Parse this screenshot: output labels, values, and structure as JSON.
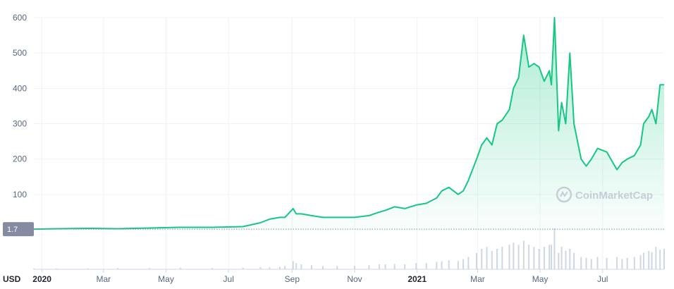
{
  "currency_label": "USD",
  "watermark": {
    "text": "CoinMarketCap",
    "icon": "coinmarketcap-logo-icon"
  },
  "baseline_badge": "1.7",
  "colors": {
    "line": "#16c784",
    "fill_top": "#16c784",
    "grid": "#eff2f5",
    "volume": "#cfd6e4",
    "badge": "#858ca2"
  },
  "chart_data": {
    "type": "area",
    "title": "",
    "xlabel": "",
    "ylabel": "",
    "ylim": [
      0,
      600
    ],
    "yticks": [
      100,
      200,
      300,
      400,
      500,
      600
    ],
    "xlim": [
      "2019-12-24",
      "2021-08-30"
    ],
    "xticks": [
      {
        "date": "2020-01-01",
        "label": "2020",
        "bold": true
      },
      {
        "date": "2020-03-01",
        "label": "Mar"
      },
      {
        "date": "2020-05-01",
        "label": "May"
      },
      {
        "date": "2020-07-01",
        "label": "Jul"
      },
      {
        "date": "2020-09-01",
        "label": "Sep"
      },
      {
        "date": "2020-11-01",
        "label": "Nov"
      },
      {
        "date": "2021-01-01",
        "label": "2021",
        "bold": true
      },
      {
        "date": "2021-03-01",
        "label": "Mar"
      },
      {
        "date": "2021-05-01",
        "label": "May"
      },
      {
        "date": "2021-07-01",
        "label": "Jul"
      }
    ],
    "series": [
      {
        "x": [
          "2019-12-24",
          "2020-01-15",
          "2020-02-15",
          "2020-03-15",
          "2020-04-15",
          "2020-05-15",
          "2020-06-15",
          "2020-07-15",
          "2020-08-01",
          "2020-08-10",
          "2020-08-20",
          "2020-08-25",
          "2020-09-02",
          "2020-09-05",
          "2020-09-10",
          "2020-09-20",
          "2020-10-01",
          "2020-10-15",
          "2020-11-01",
          "2020-11-15",
          "2020-11-25",
          "2020-12-01",
          "2020-12-10",
          "2020-12-20",
          "2020-12-31",
          "2021-01-10",
          "2021-01-20",
          "2021-01-25",
          "2021-02-01",
          "2021-02-10",
          "2021-02-15",
          "2021-02-20",
          "2021-02-28",
          "2021-03-05",
          "2021-03-10",
          "2021-03-15",
          "2021-03-20",
          "2021-03-25",
          "2021-04-01",
          "2021-04-05",
          "2021-04-10",
          "2021-04-15",
          "2021-04-20",
          "2021-04-25",
          "2021-04-30",
          "2021-05-05",
          "2021-05-10",
          "2021-05-12",
          "2021-05-15",
          "2021-05-19",
          "2021-05-22",
          "2021-05-26",
          "2021-05-30",
          "2021-06-03",
          "2021-06-10",
          "2021-06-15",
          "2021-06-20",
          "2021-06-26",
          "2021-07-05",
          "2021-07-15",
          "2021-07-20",
          "2021-07-25",
          "2021-08-01",
          "2021-08-07",
          "2021-08-10",
          "2021-08-15",
          "2021-08-18",
          "2021-08-22",
          "2021-08-26",
          "2021-08-30"
        ],
        "y": [
          1.7,
          3,
          4,
          3,
          5,
          7,
          7,
          9,
          20,
          30,
          35,
          35,
          60,
          45,
          45,
          40,
          35,
          35,
          35,
          40,
          50,
          55,
          65,
          60,
          70,
          75,
          90,
          110,
          120,
          100,
          110,
          140,
          200,
          240,
          260,
          240,
          300,
          310,
          340,
          400,
          430,
          550,
          460,
          470,
          460,
          420,
          450,
          410,
          600,
          280,
          360,
          300,
          500,
          300,
          200,
          180,
          200,
          230,
          220,
          170,
          190,
          200,
          210,
          240,
          300,
          320,
          340,
          300,
          410,
          410
        ]
      }
    ],
    "volume": [
      2,
      2,
      2,
      3,
      3,
      4,
      3,
      4,
      5,
      5,
      6,
      8,
      20,
      15,
      12,
      10,
      8,
      8,
      8,
      10,
      12,
      12,
      13,
      12,
      15,
      15,
      18,
      20,
      22,
      20,
      25,
      30,
      40,
      50,
      55,
      45,
      50,
      55,
      60,
      65,
      60,
      70,
      60,
      55,
      50,
      55,
      60,
      60,
      100,
      40,
      55,
      45,
      50,
      40,
      30,
      28,
      25,
      30,
      28,
      30,
      25,
      28,
      30,
      35,
      40,
      45,
      42,
      55,
      48,
      50
    ]
  }
}
